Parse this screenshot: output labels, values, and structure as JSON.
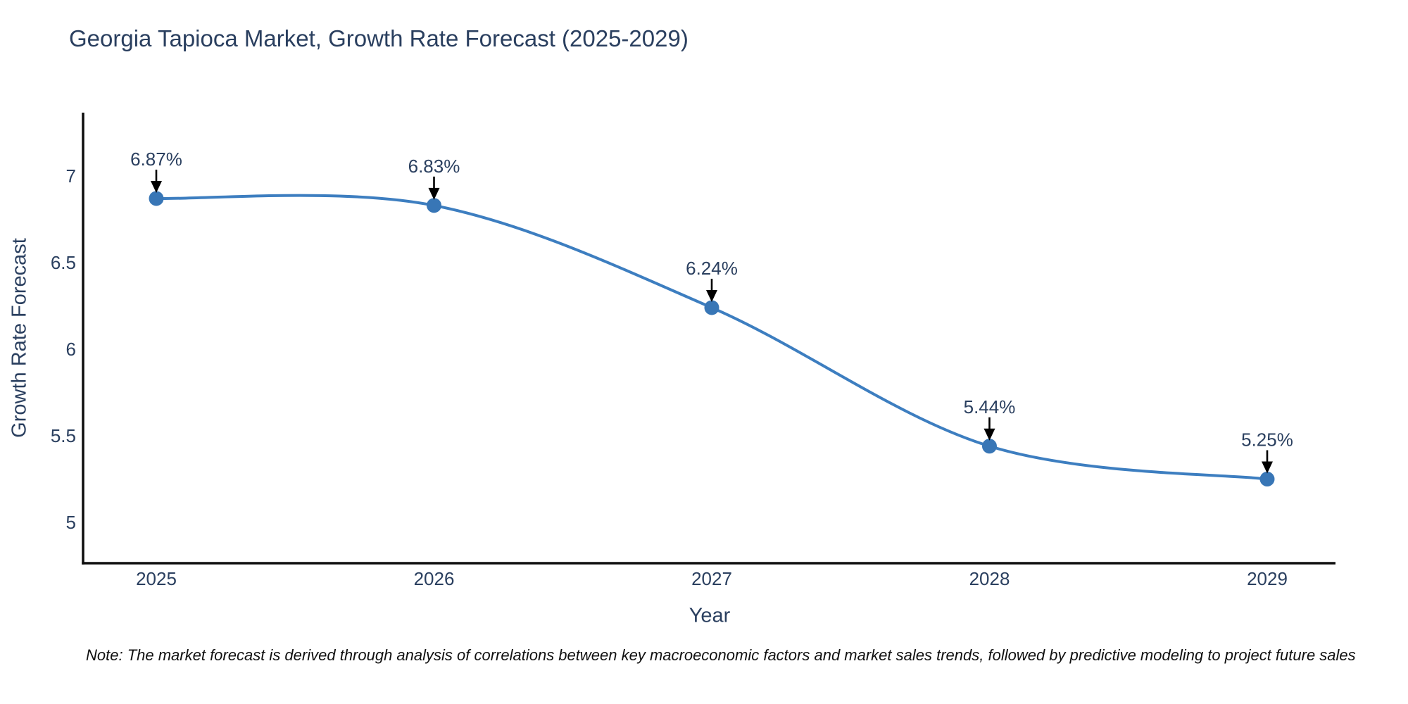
{
  "note": "Note: The market forecast is derived through analysis of correlations between key macroeconomic factors and market sales trends, followed by predictive modeling to project future sales",
  "chart_data": {
    "type": "line",
    "title": "Georgia Tapioca Market, Growth Rate Forecast (2025-2029)",
    "xlabel": "Year",
    "ylabel": "Growth Rate Forecast",
    "x": [
      2025,
      2026,
      2027,
      2028,
      2029
    ],
    "xtick_labels": [
      "2025",
      "2026",
      "2027",
      "2028",
      "2029"
    ],
    "values": [
      6.87,
      6.83,
      6.24,
      5.44,
      5.25
    ],
    "point_labels": [
      "6.87%",
      "6.83%",
      "6.24%",
      "5.44%",
      "5.25%"
    ],
    "ytick_values": [
      7,
      6.5,
      6,
      5.5,
      5
    ],
    "ytick_labels": [
      "7",
      "6.5",
      "6",
      "5.5",
      "5"
    ],
    "ylim": [
      4.77,
      7.37
    ],
    "line_shape": "spline",
    "grid": false,
    "legend": "none",
    "background": "#ffffff",
    "colors": {
      "line": "#3d7ec0",
      "marker": "#3876b6",
      "arrow": "#000000",
      "text": "#2a3f5f",
      "axis": "#0e0e0e"
    }
  }
}
